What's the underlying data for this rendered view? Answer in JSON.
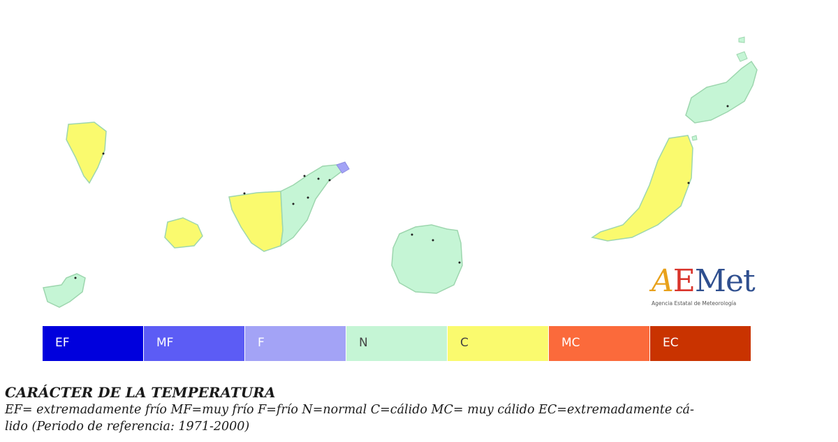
{
  "map": {
    "regions": [
      {
        "name": "La Palma",
        "category": "C"
      },
      {
        "name": "La Gomera",
        "category": "C"
      },
      {
        "name": "El Hierro",
        "category": "N"
      },
      {
        "name": "Tenerife (oeste)",
        "category": "C"
      },
      {
        "name": "Tenerife (este)",
        "category": "N"
      },
      {
        "name": "Tenerife (punta nordeste)",
        "category": "F"
      },
      {
        "name": "Gran Canaria",
        "category": "N"
      },
      {
        "name": "Fuerteventura",
        "category": "C"
      },
      {
        "name": "Lanzarote",
        "category": "N"
      }
    ]
  },
  "logo": {
    "brand_a": "A",
    "brand_e": "E",
    "brand_met": "Met",
    "subtitle": "Agencia Estatal de Meteorología"
  },
  "legend": {
    "items": [
      {
        "label": "EF",
        "color": "#0000dd",
        "text_color": "#ffffff"
      },
      {
        "label": "MF",
        "color": "#5c5cf5",
        "text_color": "#ffffff"
      },
      {
        "label": "F",
        "color": "#a3a3f6",
        "text_color": "#ffffff"
      },
      {
        "label": "N",
        "color": "#c5f5d5",
        "text_color": "#444444"
      },
      {
        "label": "C",
        "color": "#fafa6e",
        "text_color": "#444444"
      },
      {
        "label": "MC",
        "color": "#fb6a3b",
        "text_color": "#ffffff"
      },
      {
        "label": "EC",
        "color": "#c93300",
        "text_color": "#ffffff"
      }
    ]
  },
  "caption": {
    "title": "CARÁCTER DE LA TEMPERATURA",
    "line1": "EF= extremadamente frío  MF=muy frío  F=frío  N=normal  C=cálido  MC= muy cálido  EC=extremadamente cá-",
    "line2": "lido  (Periodo de referencia: 1971-2000)"
  }
}
